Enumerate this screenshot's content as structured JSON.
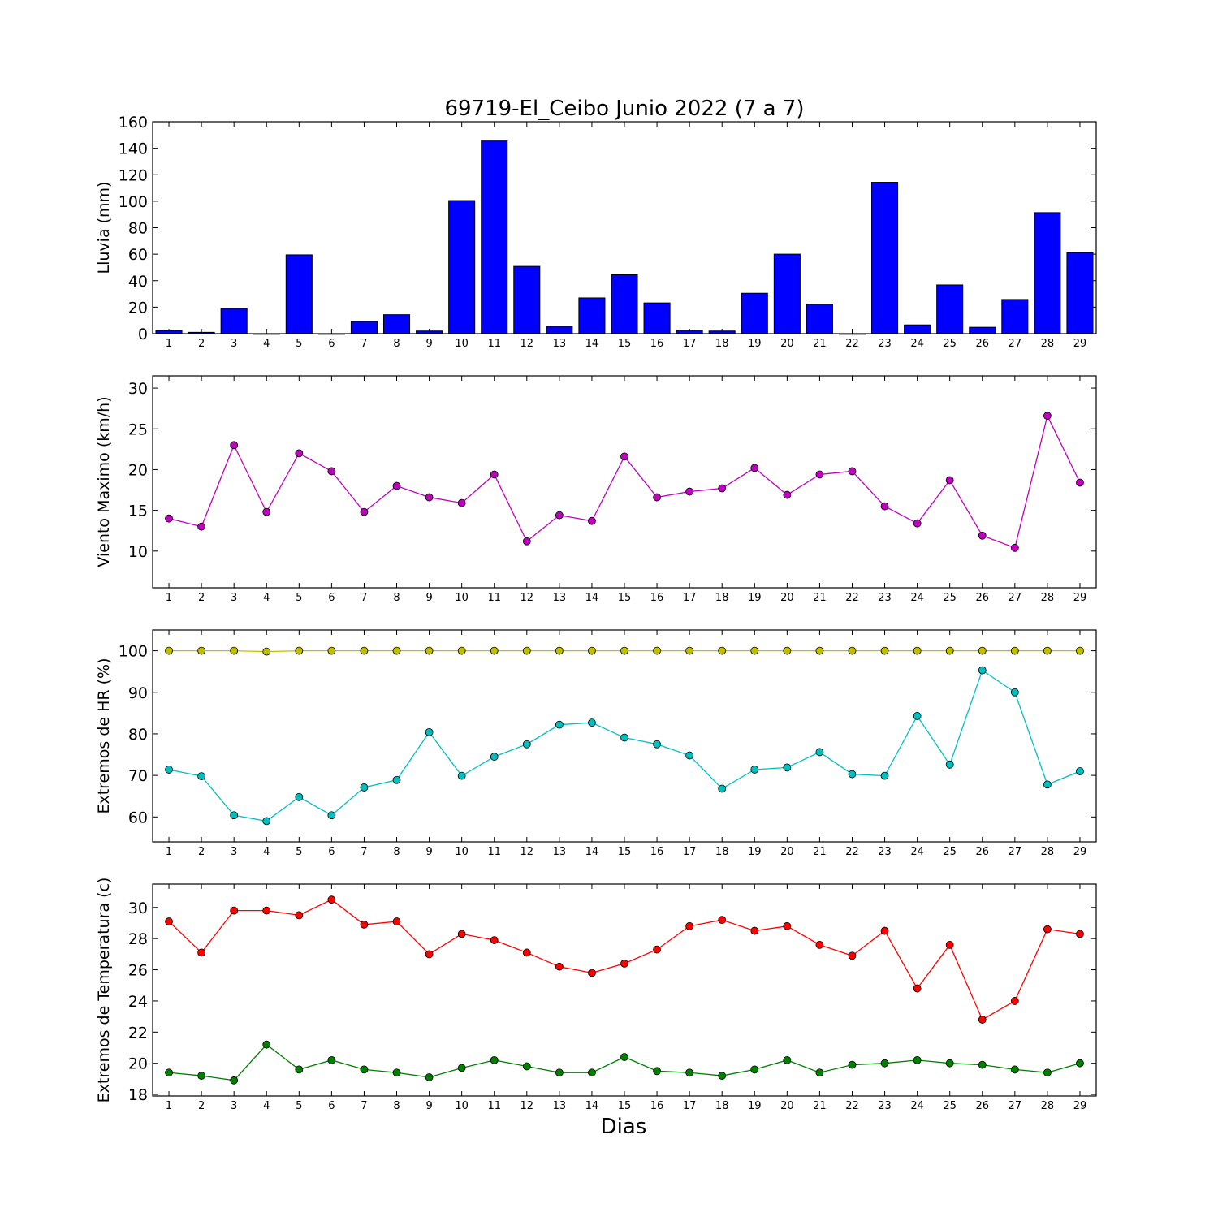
{
  "chart_data": {
    "title": "69719-El_Ceibo Junio 2022  (7 a 7)",
    "xlabel": "Dias",
    "days": [
      1,
      2,
      3,
      4,
      5,
      6,
      7,
      8,
      9,
      10,
      11,
      12,
      13,
      14,
      15,
      16,
      17,
      18,
      19,
      20,
      21,
      22,
      23,
      24,
      25,
      26,
      27,
      28,
      29
    ],
    "panels": [
      {
        "type": "bar",
        "ylabel": "Lluvia (mm)",
        "ylim": [
          0,
          160
        ],
        "yticks": [
          0,
          20,
          40,
          60,
          80,
          100,
          120,
          140,
          160
        ],
        "series": [
          {
            "color": "#0000ff",
            "values": [
              2.4,
              1.0,
              19,
              0,
              59.5,
              0,
              9.2,
              14.3,
              2.0,
              100.5,
              145.5,
              50.8,
              5.5,
              27.0,
              44.5,
              23.2,
              2.6,
              2.0,
              30.5,
              60.0,
              22.2,
              0,
              114.3,
              6.6,
              36.8,
              4.8,
              25.8,
              91.4,
              61.0
            ]
          }
        ]
      },
      {
        "type": "line",
        "ylabel": "Viento Maximo (km/h)",
        "ylim": [
          5.5,
          31.5
        ],
        "yticks": [
          10,
          15,
          20,
          25,
          30
        ],
        "series": [
          {
            "color": "#bf00bf",
            "values": [
              14.0,
              13.0,
              23.0,
              14.8,
              22.0,
              19.8,
              14.8,
              18.0,
              16.6,
              15.9,
              19.4,
              11.2,
              14.4,
              13.7,
              21.6,
              16.6,
              17.3,
              17.7,
              20.2,
              16.9,
              19.4,
              19.8,
              15.5,
              13.4,
              18.7,
              11.9,
              10.4,
              26.6,
              18.4
            ]
          }
        ]
      },
      {
        "type": "line",
        "ylabel": "Extremos de HR (%)",
        "ylim": [
          54,
          105
        ],
        "yticks": [
          60,
          70,
          80,
          90,
          100
        ],
        "series": [
          {
            "color": "#bfbf00",
            "values": [
              100,
              100,
              100,
              99.8,
              100,
              100,
              100,
              100,
              100,
              100,
              100,
              100,
              100,
              100,
              100,
              100,
              100,
              100,
              100,
              100,
              100,
              100,
              100,
              100,
              100,
              100,
              100,
              100,
              100
            ]
          },
          {
            "color": "#00bfbf",
            "values": [
              71.4,
              69.8,
              60.4,
              59.0,
              64.8,
              60.4,
              67.1,
              68.9,
              80.4,
              69.9,
              74.5,
              77.5,
              82.2,
              82.7,
              79.1,
              77.5,
              74.8,
              66.8,
              71.4,
              71.9,
              75.6,
              70.3,
              69.9,
              84.3,
              72.6,
              95.3,
              90.0,
              67.8,
              71.0
            ]
          }
        ]
      },
      {
        "type": "line",
        "ylabel": "Extremos de Temperatura (c)",
        "ylim": [
          17.9,
          31.5
        ],
        "yticks": [
          18,
          20,
          22,
          24,
          26,
          28,
          30
        ],
        "series": [
          {
            "color": "#ff0000",
            "values": [
              29.1,
              27.1,
              29.8,
              29.8,
              29.5,
              30.5,
              28.9,
              29.1,
              27.0,
              28.3,
              27.9,
              27.1,
              26.2,
              25.8,
              26.4,
              27.3,
              28.8,
              29.2,
              28.5,
              28.8,
              27.6,
              26.9,
              28.5,
              24.8,
              27.6,
              22.8,
              24.0,
              28.6,
              28.3
            ]
          },
          {
            "color": "#007f00",
            "values": [
              19.4,
              19.2,
              18.9,
              21.2,
              19.6,
              20.2,
              19.6,
              19.4,
              19.1,
              19.7,
              20.2,
              19.8,
              19.4,
              19.4,
              20.4,
              19.5,
              19.4,
              19.2,
              19.6,
              20.2,
              19.4,
              19.9,
              20.0,
              20.2,
              20.0,
              19.9,
              19.6,
              19.4,
              20.0
            ]
          }
        ]
      }
    ]
  }
}
